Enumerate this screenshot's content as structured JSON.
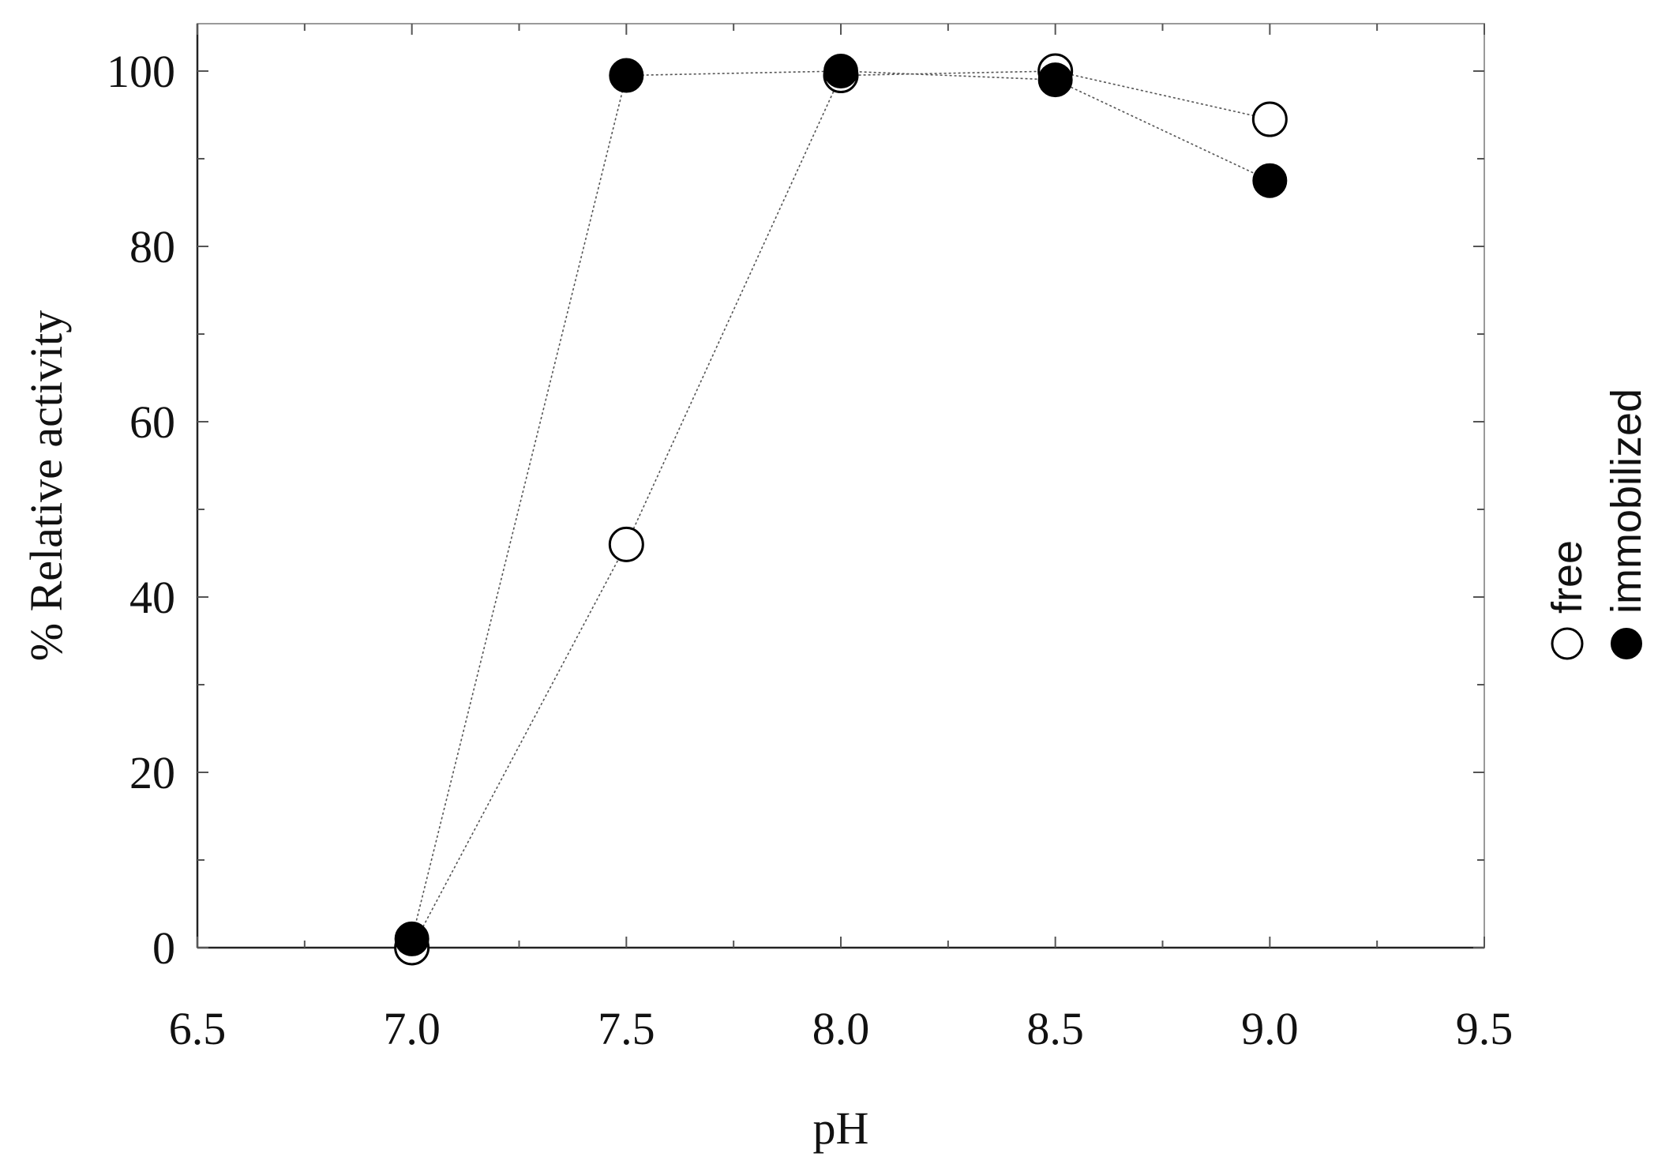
{
  "chart_data": {
    "type": "scatter",
    "title": "",
    "xlabel": "pH",
    "ylabel": "% Relative activity",
    "xlim": [
      6.5,
      9.5
    ],
    "ylim": [
      0,
      105
    ],
    "xticks": [
      6.5,
      7.0,
      7.5,
      8.0,
      8.5,
      9.0,
      9.5
    ],
    "xtick_labels": [
      "6.5",
      "7.0",
      "7.5",
      "8.0",
      "8.5",
      "9.0",
      "9.5"
    ],
    "yticks": [
      0,
      20,
      40,
      60,
      80,
      100
    ],
    "ytick_labels": [
      "0",
      "20",
      "40",
      "60",
      "80",
      "100"
    ],
    "grid": false,
    "legend_position": "right, vertical",
    "x": [
      7.0,
      7.5,
      8.0,
      8.5,
      9.0
    ],
    "series": [
      {
        "name": "free",
        "marker": "open-circle",
        "values": [
          0,
          46,
          99.5,
          100,
          94.5
        ]
      },
      {
        "name": "immobilized",
        "marker": "filled-circle",
        "values": [
          1,
          99.5,
          100,
          99,
          87.5
        ]
      }
    ]
  }
}
